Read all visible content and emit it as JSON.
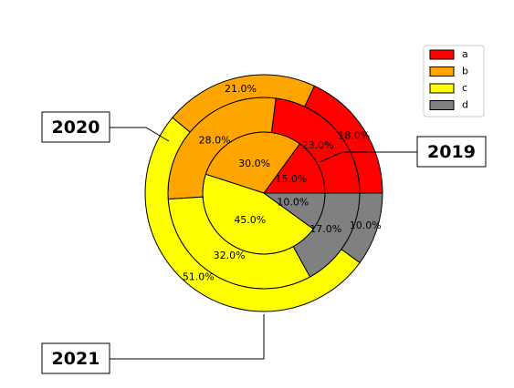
{
  "chart_data": {
    "type": "nested-pie",
    "categories": [
      "a",
      "b",
      "c",
      "d"
    ],
    "colors": [
      "#ff0000",
      "#ffa500",
      "#ffff00",
      "#808080"
    ],
    "series": [
      {
        "name": "2019",
        "values": [
          15,
          30,
          45,
          10
        ],
        "value_labels": [
          "15.0%",
          "30.0%",
          "45.0%",
          "10.0%"
        ]
      },
      {
        "name": "2020",
        "values": [
          23,
          28,
          32,
          17
        ],
        "value_labels": [
          "23.0%",
          "28.0%",
          "32.0%",
          "17.0%"
        ]
      },
      {
        "name": "2021",
        "values": [
          18,
          21,
          51,
          10
        ],
        "value_labels": [
          "18.0%",
          "21.0%",
          "51.0%",
          "10.0%"
        ]
      }
    ],
    "legend": "upper right"
  }
}
